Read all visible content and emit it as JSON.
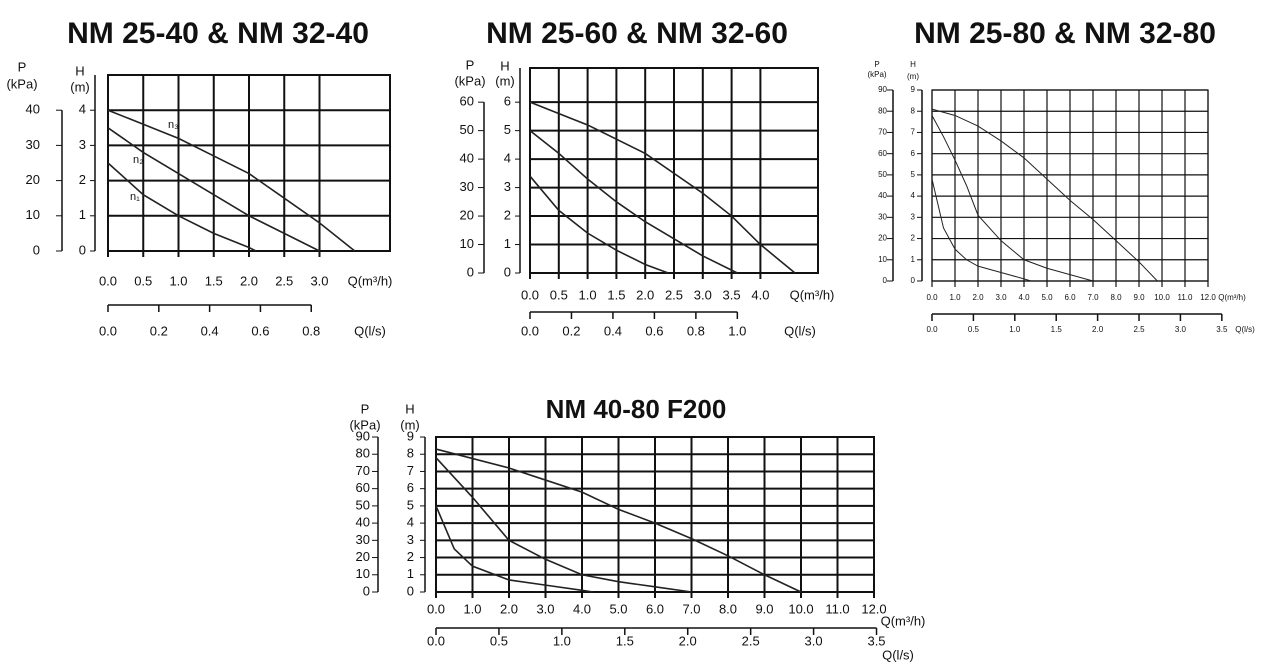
{
  "chart_data": [
    {
      "type": "line",
      "title": "NM 25-40 & NM 32-40",
      "y_label": "H",
      "y_unit": "(m)",
      "y2_label": "P",
      "y2_unit": "(kPa)",
      "x_label": "Q(m³/h)",
      "x2_label": "Q(l/s)",
      "xlim": [
        0,
        4
      ],
      "xticks": [
        {
          "value": 0,
          "label": "0.0"
        },
        0.5,
        {
          "value": 1,
          "label": "1.0"
        },
        1.5,
        {
          "value": 2,
          "label": "2.0"
        },
        2.5,
        {
          "value": 3,
          "label": "3.0"
        }
      ],
      "x2lim": [
        0,
        1.11
      ],
      "x2ticks": [
        {
          "value": 0,
          "label": "0.0"
        },
        0.2,
        0.4,
        0.6,
        0.8
      ],
      "ylim": [
        0,
        5
      ],
      "yticks": [
        0,
        1,
        2,
        3,
        4
      ],
      "y2lim": [
        0,
        50
      ],
      "y2ticks": [
        0,
        10,
        20,
        30,
        40
      ],
      "grid": true,
      "series": [
        {
          "name": "n₃",
          "color": "#222222",
          "x": [
            0,
            0.5,
            1,
            1.5,
            2,
            2.5,
            3,
            3.5
          ],
          "values": [
            4.0,
            3.6,
            3.2,
            2.7,
            2.2,
            1.5,
            0.8,
            0
          ]
        },
        {
          "name": "n₂",
          "color": "#222222",
          "x": [
            0,
            0.5,
            1,
            1.5,
            2,
            2.5,
            3
          ],
          "values": [
            3.5,
            2.8,
            2.2,
            1.6,
            1.0,
            0.5,
            0
          ]
        },
        {
          "name": "n₁",
          "color": "#222222",
          "x": [
            0,
            0.5,
            1,
            1.5,
            2,
            2.1
          ],
          "values": [
            2.5,
            1.6,
            1.0,
            0.5,
            0.1,
            0
          ]
        }
      ]
    },
    {
      "type": "line",
      "title": "NM 25-60 & NM 32-60",
      "y_label": "H",
      "y_unit": "(m)",
      "y2_label": "P",
      "y2_unit": "(kPa)",
      "x_label": "Q(m³/h)",
      "x2_label": "Q(l/s)",
      "xlim": [
        0,
        5
      ],
      "xticks": [
        {
          "value": 0,
          "label": "0.0"
        },
        0.5,
        {
          "value": 1,
          "label": "1.0"
        },
        1.5,
        {
          "value": 2,
          "label": "2.0"
        },
        2.5,
        {
          "value": 3,
          "label": "3.0"
        },
        3.5,
        {
          "value": 4,
          "label": "4.0"
        }
      ],
      "x2lim": [
        0,
        1.389
      ],
      "x2ticks": [
        {
          "value": 0,
          "label": "0.0"
        },
        0.2,
        0.4,
        0.6,
        0.8,
        {
          "value": 1,
          "label": "1.0"
        }
      ],
      "ylim": [
        0,
        7.2
      ],
      "yticks": [
        0,
        1,
        2,
        3,
        4,
        5,
        6
      ],
      "y2lim": [
        0,
        72
      ],
      "y2ticks": [
        0,
        10,
        20,
        30,
        40,
        50,
        60
      ],
      "grid": true,
      "series": [
        {
          "color": "#222222",
          "x": [
            0,
            1,
            2,
            3,
            3.5,
            4,
            4.6
          ],
          "values": [
            6.0,
            5.2,
            4.2,
            2.8,
            2.0,
            1.0,
            0
          ]
        },
        {
          "color": "#222222",
          "x": [
            0,
            0.5,
            1,
            1.5,
            2,
            2.5,
            3,
            3.6
          ],
          "values": [
            5.0,
            4.2,
            3.3,
            2.5,
            1.8,
            1.2,
            0.6,
            0
          ]
        },
        {
          "color": "#222222",
          "x": [
            0,
            0.5,
            1,
            1.5,
            2,
            2.4
          ],
          "values": [
            3.4,
            2.2,
            1.4,
            0.8,
            0.3,
            0
          ]
        }
      ]
    },
    {
      "type": "line",
      "title": "NM 25-80 & NM 32-80",
      "y_label": "H",
      "y_unit": "(m)",
      "y2_label": "P",
      "y2_unit": "(kPa)",
      "x_label": "Q(m³/h)",
      "x2_label": "Q(l/s)",
      "xlim": [
        0,
        12
      ],
      "xticks": [
        {
          "value": 0,
          "label": "0.0"
        },
        {
          "value": 1,
          "label": "1.0"
        },
        {
          "value": 2,
          "label": "2.0"
        },
        {
          "value": 3,
          "label": "3.0"
        },
        {
          "value": 4,
          "label": "4.0"
        },
        {
          "value": 5,
          "label": "5.0"
        },
        {
          "value": 6,
          "label": "6.0"
        },
        {
          "value": 7,
          "label": "7.0"
        },
        {
          "value": 8,
          "label": "8.0"
        },
        {
          "value": 9,
          "label": "9.0"
        },
        {
          "value": 10,
          "label": "10.0"
        },
        {
          "value": 11,
          "label": "11.0"
        },
        {
          "value": 12,
          "label": "12.0"
        }
      ],
      "x2lim": [
        0,
        3.333
      ],
      "x2ticks": [
        {
          "value": 0,
          "label": "0.0"
        },
        0.5,
        {
          "value": 1,
          "label": "1.0"
        },
        1.5,
        {
          "value": 2,
          "label": "2.0"
        },
        2.5,
        {
          "value": 3,
          "label": "3.0"
        },
        3.5
      ],
      "ylim": [
        0,
        9
      ],
      "yticks": [
        0,
        1,
        2,
        3,
        4,
        5,
        6,
        7,
        8,
        9
      ],
      "y2lim": [
        0,
        90
      ],
      "y2ticks": [
        0,
        10,
        20,
        30,
        40,
        50,
        60,
        70,
        80,
        90
      ],
      "grid": true,
      "series": [
        {
          "color": "#222222",
          "x": [
            0,
            1,
            2,
            3,
            4,
            5,
            6,
            7,
            8,
            9,
            9.8
          ],
          "values": [
            8.1,
            7.8,
            7.3,
            6.6,
            5.8,
            4.8,
            3.8,
            2.9,
            1.9,
            0.9,
            0
          ]
        },
        {
          "color": "#222222",
          "x": [
            0,
            0.5,
            1,
            1.5,
            2,
            3,
            4,
            5,
            6,
            7
          ],
          "values": [
            7.8,
            6.8,
            5.7,
            4.5,
            3.1,
            1.9,
            1.0,
            0.6,
            0.3,
            0
          ]
        },
        {
          "color": "#222222",
          "x": [
            0,
            0.5,
            1,
            1.5,
            2,
            3,
            4,
            4.3
          ],
          "values": [
            4.8,
            2.5,
            1.5,
            1.0,
            0.7,
            0.4,
            0.1,
            0
          ]
        }
      ]
    },
    {
      "type": "line",
      "title": "NM 40-80 F200",
      "y_label": "H",
      "y_unit": "(m)",
      "y2_label": "P",
      "y2_unit": "(kPa)",
      "x_label": "Q(m³/h)",
      "x2_label": "Q(l/s)",
      "xlim": [
        0,
        12
      ],
      "xticks": [
        {
          "value": 0,
          "label": "0.0"
        },
        {
          "value": 1,
          "label": "1.0"
        },
        {
          "value": 2,
          "label": "2.0"
        },
        {
          "value": 3,
          "label": "3.0"
        },
        {
          "value": 4,
          "label": "4.0"
        },
        {
          "value": 5,
          "label": "5.0"
        },
        {
          "value": 6,
          "label": "6.0"
        },
        {
          "value": 7,
          "label": "7.0"
        },
        {
          "value": 8,
          "label": "8.0"
        },
        {
          "value": 9,
          "label": "9.0"
        },
        {
          "value": 10,
          "label": "10.0"
        },
        {
          "value": 11,
          "label": "11.0"
        },
        {
          "value": 12,
          "label": "12.0"
        }
      ],
      "x2lim": [
        0,
        3.48
      ],
      "x2ticks": [
        {
          "value": 0,
          "label": "0.0"
        },
        0.5,
        {
          "value": 1,
          "label": "1.0"
        },
        1.5,
        {
          "value": 2,
          "label": "2.0"
        },
        2.5,
        {
          "value": 3,
          "label": "3.0"
        },
        3.5
      ],
      "ylim": [
        0,
        9
      ],
      "yticks": [
        0,
        1,
        2,
        3,
        4,
        5,
        6,
        7,
        8,
        9
      ],
      "y2lim": [
        0,
        90
      ],
      "y2ticks": [
        0,
        10,
        20,
        30,
        40,
        50,
        60,
        70,
        80,
        90
      ],
      "grid": true,
      "series": [
        {
          "color": "#222222",
          "x": [
            0,
            2,
            3,
            4,
            5,
            6,
            7,
            8,
            9,
            10
          ],
          "values": [
            8.3,
            7.2,
            6.5,
            5.8,
            4.8,
            4.0,
            3.1,
            2.1,
            1.0,
            0
          ]
        },
        {
          "color": "#222222",
          "x": [
            0,
            1,
            2,
            3,
            4,
            5,
            6,
            7
          ],
          "values": [
            7.8,
            5.5,
            3.0,
            1.9,
            1.0,
            0.6,
            0.3,
            0
          ]
        },
        {
          "color": "#222222",
          "x": [
            0,
            0.5,
            1,
            2,
            3,
            4,
            4.3
          ],
          "values": [
            5.0,
            2.5,
            1.5,
            0.7,
            0.4,
            0.1,
            0
          ]
        }
      ]
    }
  ]
}
